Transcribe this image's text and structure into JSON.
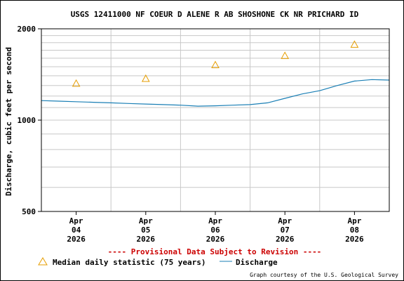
{
  "chart_data": {
    "type": "line",
    "title": "USGS 12411000 NF COEUR D ALENE R AB SHOSHONE CK NR PRICHARD ID",
    "ylabel": "Discharge, cubic feet per second",
    "ylim": [
      500,
      2000
    ],
    "y_scale": "log",
    "y_ticks": [
      "500",
      "1000",
      "2000"
    ],
    "x_ticks": [
      {
        "month": "Apr",
        "day": "04",
        "year": "2026"
      },
      {
        "month": "Apr",
        "day": "05",
        "year": "2026"
      },
      {
        "month": "Apr",
        "day": "06",
        "year": "2026"
      },
      {
        "month": "Apr",
        "day": "07",
        "year": "2026"
      },
      {
        "month": "Apr",
        "day": "08",
        "year": "2026"
      }
    ],
    "x_start": "2026-04-03 12:00",
    "x_end": "2026-04-08 12:00",
    "grid": true,
    "legend": "bottom",
    "colors": {
      "discharge": "#1a7fb5",
      "median": "#e69d00",
      "provisional": "#cc0000"
    },
    "series": [
      {
        "name": "Discharge",
        "marker": "line",
        "points": [
          [
            "2026-04-03 12:00",
            1160
          ],
          [
            "2026-04-03 18:00",
            1155
          ],
          [
            "2026-04-04 00:00",
            1150
          ],
          [
            "2026-04-04 06:00",
            1145
          ],
          [
            "2026-04-04 12:00",
            1140
          ],
          [
            "2026-04-04 18:00",
            1135
          ],
          [
            "2026-04-05 00:00",
            1130
          ],
          [
            "2026-04-05 06:00",
            1125
          ],
          [
            "2026-04-05 12:00",
            1120
          ],
          [
            "2026-04-05 18:00",
            1112
          ],
          [
            "2026-04-06 00:00",
            1115
          ],
          [
            "2026-04-06 06:00",
            1120
          ],
          [
            "2026-04-06 12:00",
            1125
          ],
          [
            "2026-04-06 18:00",
            1140
          ],
          [
            "2026-04-07 00:00",
            1180
          ],
          [
            "2026-04-07 06:00",
            1220
          ],
          [
            "2026-04-07 12:00",
            1250
          ],
          [
            "2026-04-07 18:00",
            1300
          ],
          [
            "2026-04-08 00:00",
            1345
          ],
          [
            "2026-04-08 06:00",
            1360
          ],
          [
            "2026-04-08 12:00",
            1355
          ]
        ]
      },
      {
        "name": "Median daily statistic (75 years)",
        "marker": "triangle",
        "points": [
          [
            "2026-04-04 00:00",
            1320
          ],
          [
            "2026-04-05 00:00",
            1370
          ],
          [
            "2026-04-06 00:00",
            1520
          ],
          [
            "2026-04-07 00:00",
            1630
          ],
          [
            "2026-04-08 00:00",
            1775
          ]
        ]
      }
    ]
  },
  "provisional_note": "---- Provisional Data Subject to Revision ----",
  "credit": "Graph courtesy of the U.S. Geological Survey"
}
